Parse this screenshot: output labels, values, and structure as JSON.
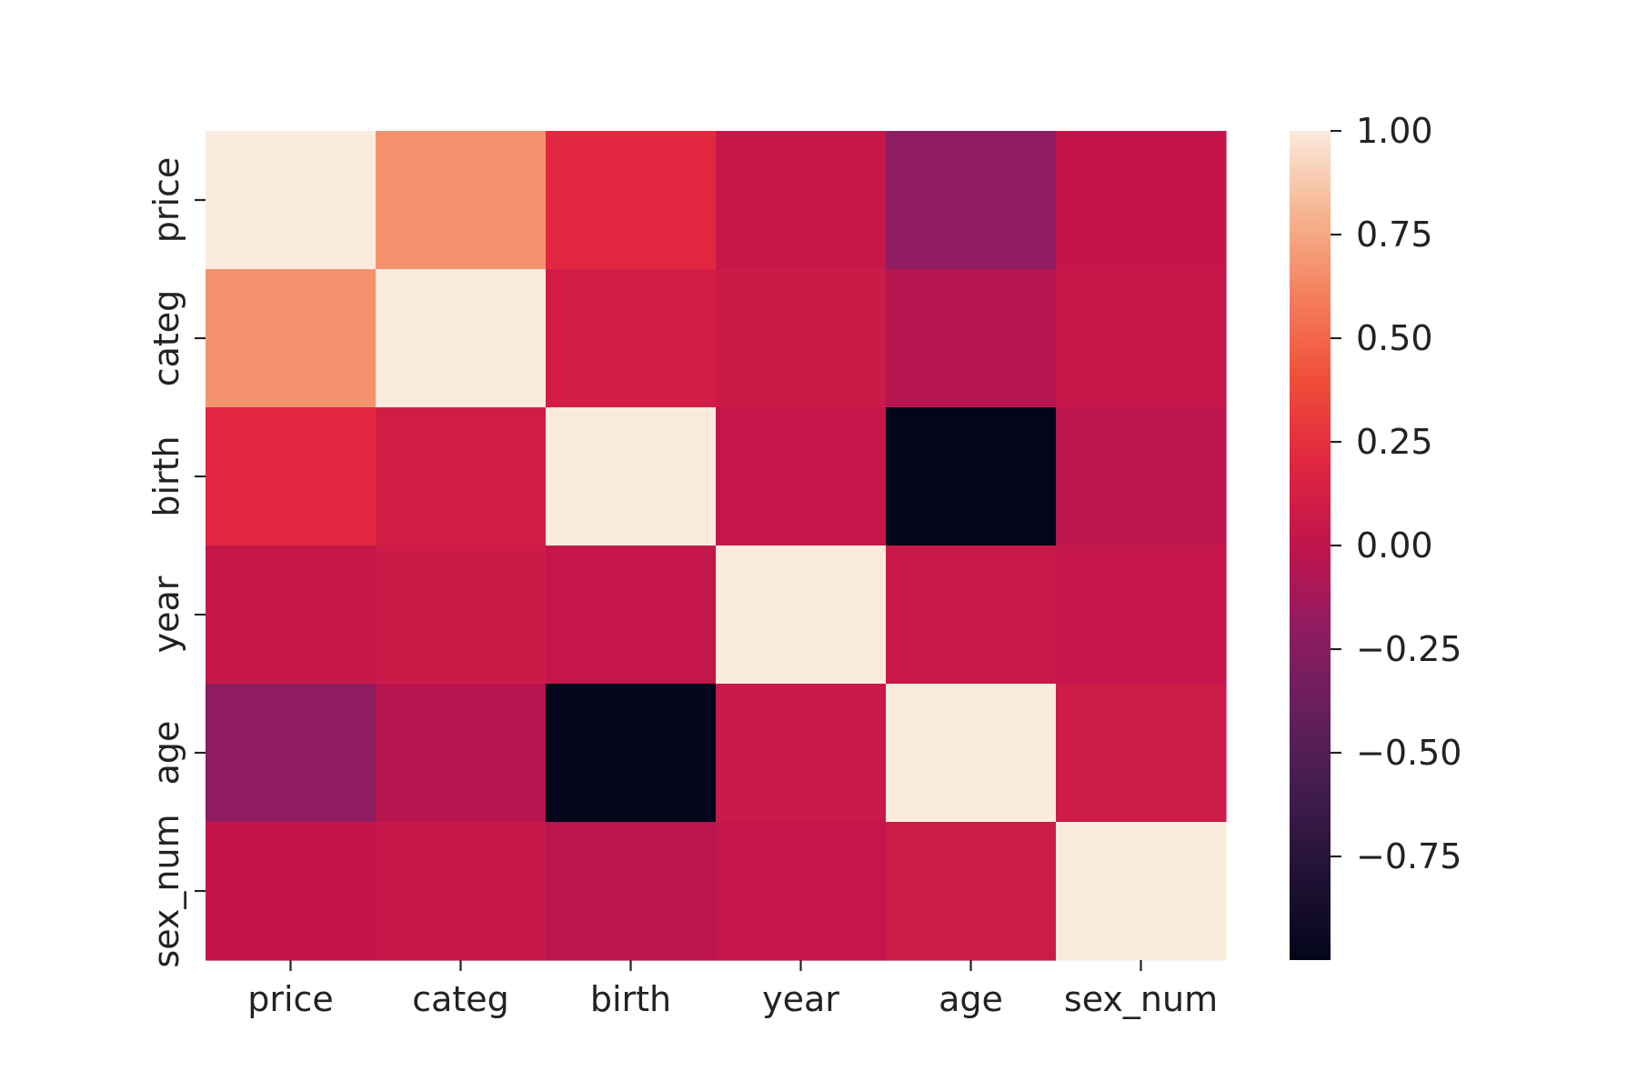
{
  "chart_data": {
    "type": "heatmap",
    "x_labels": [
      "price",
      "categ",
      "birth",
      "year",
      "age",
      "sex_num"
    ],
    "y_labels": [
      "price",
      "categ",
      "birth",
      "year",
      "age",
      "sex_num"
    ],
    "values": [
      [
        1.0,
        0.67,
        0.21,
        0.03,
        -0.21,
        0.01
      ],
      [
        0.67,
        1.0,
        0.1,
        0.07,
        -0.04,
        0.03
      ],
      [
        0.21,
        0.1,
        1.0,
        0.02,
        -1.0,
        -0.02
      ],
      [
        0.03,
        0.07,
        0.02,
        1.0,
        0.06,
        0.02
      ],
      [
        -0.21,
        -0.04,
        -1.0,
        0.06,
        1.0,
        0.08
      ],
      [
        0.01,
        0.03,
        -0.02,
        0.02,
        0.08,
        1.0
      ]
    ],
    "colorbar": {
      "min": -1.0,
      "max": 1.0,
      "ticks": [
        1.0,
        0.75,
        0.5,
        0.25,
        0.0,
        -0.25,
        -0.5,
        -0.75
      ],
      "tick_labels": [
        "1.00",
        "0.75",
        "0.50",
        "0.25",
        "0.00",
        "−0.25",
        "−0.50",
        "−0.75"
      ]
    },
    "colormap": "rocket"
  }
}
